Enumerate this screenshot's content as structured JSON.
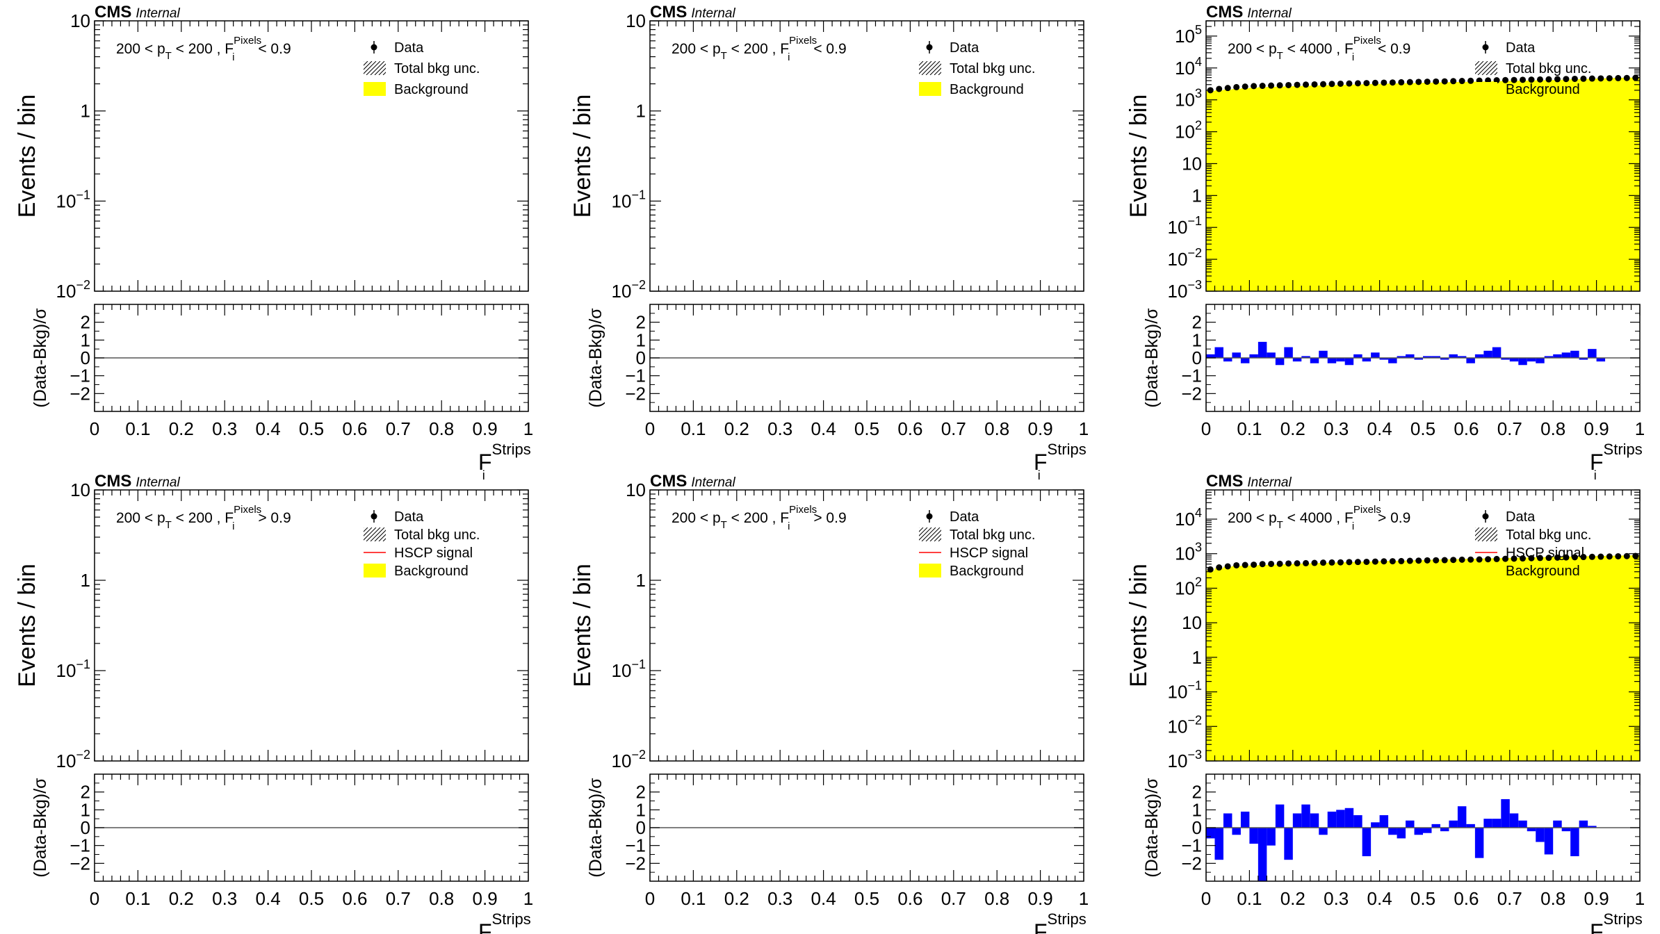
{
  "labels": {
    "cms": "CMS",
    "internal": "Internal",
    "ylabel_main": "Events / bin",
    "ylabel_ratio": "(Data-Bkg)/σ",
    "xlabel_main": "F",
    "xlabel_sup": "Strips",
    "xlabel_sub": "i",
    "cut_sup": "Pixels",
    "cut_sub": "i",
    "pt_sub": "T"
  },
  "colors": {
    "background": "#ffff00",
    "ratio": "#0000ff",
    "signal": "#ff0000",
    "data": "#000000"
  },
  "x_ticks": [
    "0",
    "0.1",
    "0.2",
    "0.3",
    "0.4",
    "0.5",
    "0.6",
    "0.7",
    "0.8",
    "0.9",
    "1"
  ],
  "ratio_ticks": [
    "2",
    "1",
    "0",
    "−1",
    "−2"
  ],
  "chart_data": [
    {
      "type": "bar",
      "title": "",
      "cut_text": {
        "pre": "200 < p",
        "mid": " < 200 , F",
        "post": " < 0.9"
      },
      "ylim": [
        0.01,
        10
      ],
      "ylog": true,
      "y_ticks": [
        {
          "v": 10,
          "base": "10"
        },
        {
          "v": 1,
          "base": "1"
        },
        {
          "v": 0.1,
          "base": "10",
          "exp": "−1"
        },
        {
          "v": 0.01,
          "base": "10",
          "exp": "−2"
        }
      ],
      "legend": [
        "Data",
        "Total bkg unc.",
        "Background"
      ],
      "bkg": [],
      "data": [],
      "ratio": []
    },
    {
      "type": "bar",
      "title": "",
      "cut_text": {
        "pre": "200 < p",
        "mid": " < 200 , F",
        "post": " < 0.9"
      },
      "ylim": [
        0.01,
        10
      ],
      "ylog": true,
      "y_ticks": [
        {
          "v": 10,
          "base": "10"
        },
        {
          "v": 1,
          "base": "1"
        },
        {
          "v": 0.1,
          "base": "10",
          "exp": "−1"
        },
        {
          "v": 0.01,
          "base": "10",
          "exp": "−2"
        }
      ],
      "legend": [
        "Data",
        "Total bkg unc.",
        "Background"
      ],
      "bkg": [],
      "data": [],
      "ratio": []
    },
    {
      "type": "bar",
      "title": "",
      "cut_text": {
        "pre": "200 < p",
        "mid": " < 4000 , F",
        "post": " < 0.9"
      },
      "ylim": [
        0.001,
        300000
      ],
      "ylog": true,
      "y_ticks": [
        {
          "v": 100000,
          "base": "10",
          "exp": "5"
        },
        {
          "v": 10000,
          "base": "10",
          "exp": "4"
        },
        {
          "v": 1000,
          "base": "10",
          "exp": "3"
        },
        {
          "v": 100,
          "base": "10",
          "exp": "2"
        },
        {
          "v": 10,
          "base": "10"
        },
        {
          "v": 1,
          "base": "1"
        },
        {
          "v": 0.1,
          "base": "10",
          "exp": "−1"
        },
        {
          "v": 0.01,
          "base": "10",
          "exp": "−2"
        },
        {
          "v": 0.001,
          "base": "10",
          "exp": "−3"
        }
      ],
      "legend": [
        "Data",
        "Total bkg unc.",
        "Background"
      ],
      "bkg": [
        1900,
        2000,
        2100,
        2200,
        2300,
        2400,
        2500,
        2550,
        2600,
        2650,
        2700,
        2750,
        2800,
        2850,
        2900,
        2950,
        3000,
        3050,
        3100,
        3150,
        3200,
        3250,
        3300,
        3350,
        3400,
        3450,
        3500,
        3550,
        3600,
        3650,
        3700,
        3750,
        3800,
        3850,
        3900,
        3950,
        4000,
        4050,
        4100,
        4150,
        4200,
        4300,
        4400,
        4500,
        4600,
        4700,
        4800,
        4900,
        4950,
        5000
      ],
      "data": [
        2000,
        2200,
        2350,
        2500,
        2600,
        2700,
        2750,
        2800,
        2850,
        2900,
        2950,
        3000,
        3050,
        3100,
        3150,
        3200,
        3250,
        3300,
        3350,
        3400,
        3450,
        3500,
        3550,
        3600,
        3650,
        3700,
        3750,
        3800,
        3850,
        3900,
        3950,
        4000,
        4050,
        4100,
        4150,
        4200,
        4250,
        4300,
        4350,
        4400,
        4450,
        4500,
        4550,
        4600,
        4650,
        4700,
        4750,
        4800,
        4850,
        4900
      ],
      "ratio": [
        0.2,
        0.6,
        -0.2,
        0.3,
        -0.3,
        0.2,
        0.9,
        0.3,
        -0.4,
        0.6,
        -0.2,
        0.1,
        -0.3,
        0.4,
        -0.3,
        -0.2,
        -0.4,
        0.2,
        -0.2,
        0.3,
        -0.1,
        -0.3,
        0.1,
        0.2,
        -0.1,
        0.1,
        0.1,
        -0.1,
        0.2,
        0.1,
        -0.3,
        0.2,
        0.4,
        0.6,
        -0.1,
        -0.2,
        -0.4,
        -0.2,
        -0.3,
        0.1,
        0.2,
        0.3,
        0.4,
        -0.1,
        0.5,
        -0.2,
        0.0,
        0.0,
        0.0,
        0.0
      ]
    },
    {
      "type": "bar",
      "title": "",
      "cut_text": {
        "pre": "200 < p",
        "mid": " < 200 , F",
        "post": " > 0.9"
      },
      "ylim": [
        0.01,
        10
      ],
      "ylog": true,
      "y_ticks": [
        {
          "v": 10,
          "base": "10"
        },
        {
          "v": 1,
          "base": "1"
        },
        {
          "v": 0.1,
          "base": "10",
          "exp": "−1"
        },
        {
          "v": 0.01,
          "base": "10",
          "exp": "−2"
        }
      ],
      "legend": [
        "Data",
        "Total bkg unc.",
        "HSCP signal",
        "Background"
      ],
      "bkg": [],
      "data": [],
      "ratio": []
    },
    {
      "type": "bar",
      "title": "",
      "cut_text": {
        "pre": "200 < p",
        "mid": " < 200 , F",
        "post": " > 0.9"
      },
      "ylim": [
        0.01,
        10
      ],
      "ylog": true,
      "y_ticks": [
        {
          "v": 10,
          "base": "10"
        },
        {
          "v": 1,
          "base": "1"
        },
        {
          "v": 0.1,
          "base": "10",
          "exp": "−1"
        },
        {
          "v": 0.01,
          "base": "10",
          "exp": "−2"
        }
      ],
      "legend": [
        "Data",
        "Total bkg unc.",
        "HSCP signal",
        "Background"
      ],
      "bkg": [],
      "data": [],
      "ratio": []
    },
    {
      "type": "bar",
      "title": "",
      "cut_text": {
        "pre": "200 < p",
        "mid": " < 4000 , F",
        "post": " > 0.9"
      },
      "ylim": [
        0.001,
        70000
      ],
      "ylog": true,
      "y_ticks": [
        {
          "v": 10000,
          "base": "10",
          "exp": "4"
        },
        {
          "v": 1000,
          "base": "10",
          "exp": "3"
        },
        {
          "v": 100,
          "base": "10",
          "exp": "2"
        },
        {
          "v": 10,
          "base": "10"
        },
        {
          "v": 1,
          "base": "1"
        },
        {
          "v": 0.1,
          "base": "10",
          "exp": "−1"
        },
        {
          "v": 0.01,
          "base": "10",
          "exp": "−2"
        },
        {
          "v": 0.001,
          "base": "10",
          "exp": "−3"
        }
      ],
      "legend": [
        "Data",
        "Total bkg unc.",
        "HSCP signal",
        "Background"
      ],
      "bkg": [
        330,
        380,
        420,
        440,
        450,
        460,
        470,
        480,
        490,
        500,
        510,
        520,
        530,
        540,
        550,
        560,
        570,
        580,
        590,
        600,
        610,
        620,
        630,
        640,
        650,
        660,
        670,
        680,
        690,
        700,
        710,
        720,
        730,
        740,
        750,
        760,
        770,
        780,
        790,
        800,
        810,
        820,
        830,
        840,
        850,
        860,
        870,
        880,
        890,
        900
      ],
      "data": [
        350,
        400,
        430,
        460,
        470,
        480,
        500,
        505,
        510,
        520,
        525,
        530,
        540,
        550,
        555,
        560,
        570,
        575,
        580,
        590,
        600,
        605,
        610,
        620,
        630,
        640,
        645,
        650,
        660,
        670,
        675,
        680,
        690,
        700,
        710,
        720,
        730,
        740,
        750,
        760,
        770,
        780,
        790,
        800,
        810,
        820,
        830,
        840,
        850,
        860
      ],
      "ratio": [
        -0.6,
        -1.8,
        0.8,
        -0.4,
        0.9,
        -0.9,
        -3.0,
        -1.0,
        1.3,
        -1.8,
        0.8,
        1.3,
        0.8,
        -0.4,
        0.9,
        1.0,
        1.1,
        0.7,
        -1.6,
        0.3,
        0.7,
        -0.4,
        -0.6,
        0.4,
        -0.4,
        -0.3,
        0.2,
        -0.2,
        0.4,
        1.2,
        0.2,
        -1.7,
        0.5,
        0.5,
        1.6,
        0.8,
        0.4,
        -0.2,
        -0.8,
        -1.5,
        0.4,
        -0.2,
        -1.6,
        0.4,
        0.1,
        0.0,
        0.0,
        0.0,
        0.0,
        0.0
      ]
    }
  ]
}
